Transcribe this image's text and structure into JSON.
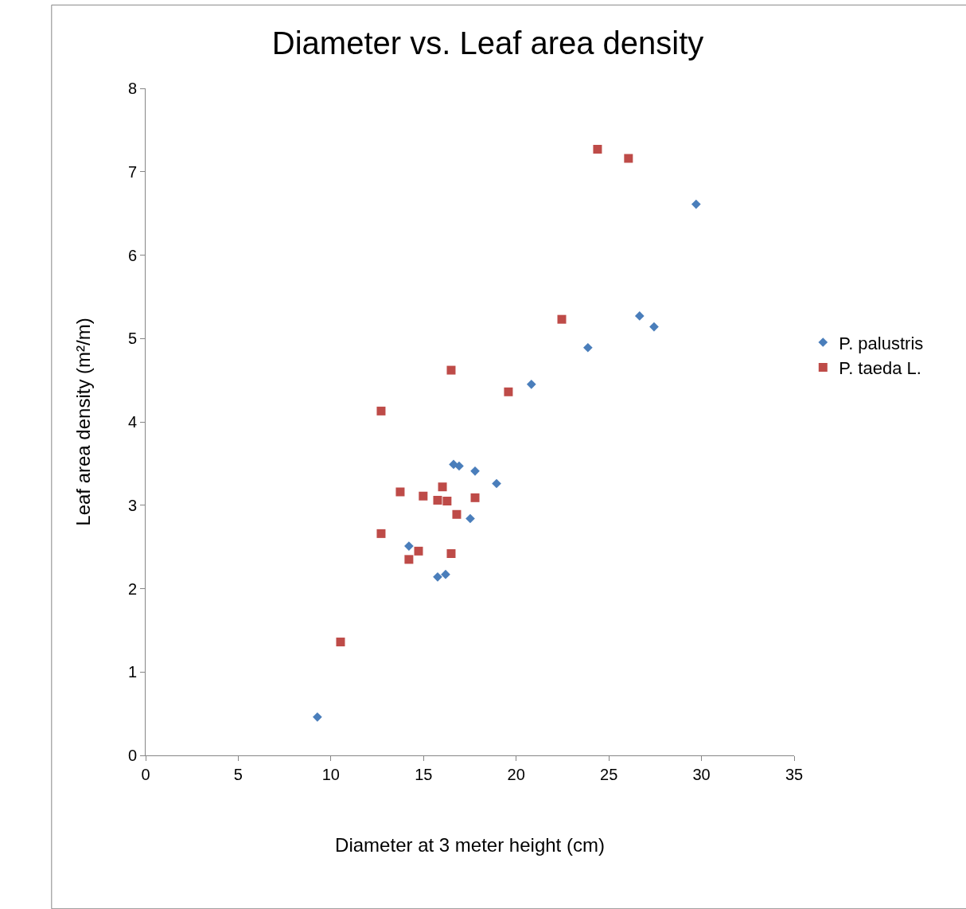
{
  "chart_data": {
    "type": "scatter",
    "title": "Diameter vs. Leaf area density",
    "xlabel": "Diameter at 3 meter height (cm)",
    "ylabel": "Leaf area density (m²/m)",
    "xlim": [
      0,
      35
    ],
    "xticks": [
      0,
      5,
      10,
      15,
      20,
      25,
      30,
      35
    ],
    "ylim": [
      0,
      8
    ],
    "yticks": [
      0,
      1,
      2,
      3,
      4,
      5,
      6,
      7,
      8
    ],
    "grid": false,
    "legend": "right",
    "series": [
      {
        "name": "P. palustris",
        "color": "#4a7ebb",
        "marker": "diamond",
        "x": [
          9.27,
          14.21,
          15.76,
          16.19,
          16.62,
          16.92,
          17.78,
          18.94,
          17.52,
          20.82,
          23.87,
          26.66,
          27.44,
          29.71
        ],
        "values": [
          0.46,
          2.51,
          2.14,
          2.17,
          3.49,
          3.47,
          3.41,
          3.26,
          2.84,
          4.45,
          4.89,
          5.27,
          5.14,
          6.61
        ]
      },
      {
        "name": "P. taeda L.",
        "color": "#be4b48",
        "marker": "square",
        "x": [
          10.52,
          12.71,
          12.71,
          13.74,
          14.21,
          14.73,
          14.98,
          15.76,
          16.02,
          16.27,
          16.49,
          16.49,
          16.79,
          17.78,
          19.58,
          22.46,
          24.39,
          26.06
        ],
        "values": [
          1.36,
          2.66,
          4.13,
          3.16,
          2.35,
          2.45,
          3.11,
          3.06,
          3.22,
          3.05,
          2.42,
          4.62,
          2.89,
          3.09,
          4.36,
          5.23,
          7.27,
          7.16
        ]
      }
    ]
  }
}
